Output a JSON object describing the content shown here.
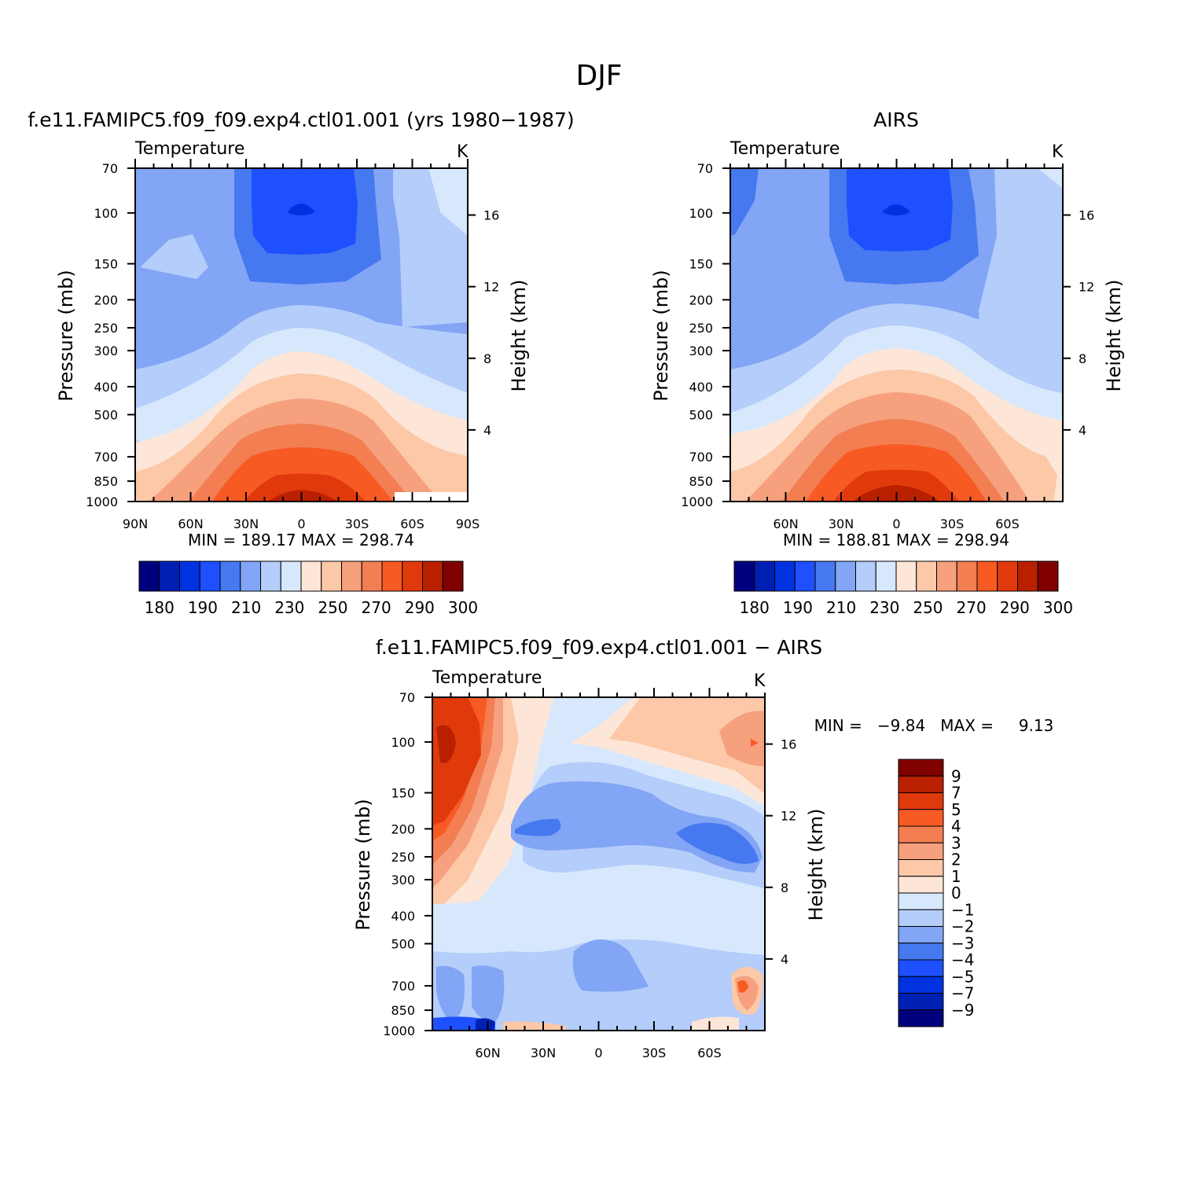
{
  "page_title": "DJF",
  "colors": {
    "temp_scale": [
      "#00007f",
      "#0020b4",
      "#0032e0",
      "#1e50ff",
      "#4678f0",
      "#82a5f5",
      "#b4cdfa",
      "#d7e8fc",
      "#fde6d7",
      "#fcc8a8",
      "#f6a07e",
      "#f27e52",
      "#f85a23",
      "#e03a0c",
      "#b92000",
      "#800000"
    ],
    "diff_scale": [
      "#00007f",
      "#0020b4",
      "#0032e0",
      "#1e50ff",
      "#4678f0",
      "#82a5f5",
      "#b4cdfa",
      "#d7e8fc",
      "#fde6d7",
      "#fcc8a8",
      "#f6a07e",
      "#f27e52",
      "#f85a23",
      "#e03a0c",
      "#b92000",
      "#800000"
    ]
  },
  "chart_data": [
    {
      "type": "heatmap",
      "title": "f.e11.FAMIPC5.f09_f09.exp4.ctl01.001 (yrs 1980−1987)",
      "left_label": "Temperature",
      "units": "K",
      "ylabel": "Pressure (mb)",
      "ylabel2": "Height (km)",
      "x_ticks": [
        "90N",
        "60N",
        "30N",
        "0",
        "30S",
        "60S",
        "90S"
      ],
      "x_values": [
        90,
        60,
        30,
        0,
        -30,
        -60,
        -90
      ],
      "y_ticks": [
        "70",
        "100",
        "150",
        "200",
        "250",
        "300",
        "400",
        "500",
        "700",
        "850",
        "1000"
      ],
      "y_values": [
        70,
        100,
        150,
        200,
        250,
        300,
        400,
        500,
        700,
        850,
        1000
      ],
      "height_ticks": [
        "16",
        "12",
        "8",
        "4"
      ],
      "height_values": [
        16,
        12,
        8,
        4
      ],
      "stats": "MIN = 189.17   MAX = 298.74",
      "min": 189.17,
      "max": 298.74,
      "colorbar_labels": [
        "180",
        "190",
        "210",
        "230",
        "250",
        "270",
        "290",
        "300"
      ],
      "colorbar_levels": [
        180,
        190,
        200,
        210,
        220,
        230,
        240,
        250,
        260,
        270,
        280,
        285,
        290,
        295,
        300
      ]
    },
    {
      "type": "heatmap",
      "title": "AIRS",
      "left_label": "Temperature",
      "units": "K",
      "ylabel": "Pressure (mb)",
      "ylabel2": "Height (km)",
      "x_ticks": [
        "60N",
        "30N",
        "0",
        "30S",
        "60S"
      ],
      "x_values": [
        60,
        30,
        0,
        -30,
        -60
      ],
      "y_ticks": [
        "70",
        "100",
        "150",
        "200",
        "250",
        "300",
        "400",
        "500",
        "700",
        "850",
        "1000"
      ],
      "y_values": [
        70,
        100,
        150,
        200,
        250,
        300,
        400,
        500,
        700,
        850,
        1000
      ],
      "height_ticks": [
        "16",
        "12",
        "8",
        "4"
      ],
      "height_values": [
        16,
        12,
        8,
        4
      ],
      "stats": "MIN = 188.81   MAX = 298.94",
      "min": 188.81,
      "max": 298.94,
      "colorbar_labels": [
        "180",
        "190",
        "210",
        "230",
        "250",
        "270",
        "290",
        "300"
      ],
      "colorbar_levels": [
        180,
        190,
        200,
        210,
        220,
        230,
        240,
        250,
        260,
        270,
        280,
        285,
        290,
        295,
        300
      ]
    },
    {
      "type": "heatmap",
      "title": "f.e11.FAMIPC5.f09_f09.exp4.ctl01.001 − AIRS",
      "left_label": "Temperature",
      "units": "K",
      "ylabel": "Pressure (mb)",
      "ylabel2": "Height (km)",
      "x_ticks": [
        "60N",
        "30N",
        "0",
        "30S",
        "60S"
      ],
      "x_values": [
        60,
        30,
        0,
        -30,
        -60
      ],
      "y_ticks": [
        "70",
        "100",
        "150",
        "200",
        "250",
        "300",
        "400",
        "500",
        "700",
        "850",
        "1000"
      ],
      "y_values": [
        70,
        100,
        150,
        200,
        250,
        300,
        400,
        500,
        700,
        850,
        1000
      ],
      "height_ticks": [
        "16",
        "12",
        "8",
        "4"
      ],
      "height_values": [
        16,
        12,
        8,
        4
      ],
      "stats": "MIN =   −9.84   MAX =     9.13",
      "min": -9.84,
      "max": 9.13,
      "colorbar_labels": [
        "9",
        "7",
        "5",
        "4",
        "3",
        "2",
        "1",
        "0",
        "−1",
        "−2",
        "−3",
        "−4",
        "−5",
        "−7",
        "−9"
      ],
      "colorbar_levels": [
        9,
        7,
        5,
        4,
        3,
        2,
        1,
        0,
        -1,
        -2,
        -3,
        -4,
        -5,
        -7,
        -9
      ]
    }
  ]
}
